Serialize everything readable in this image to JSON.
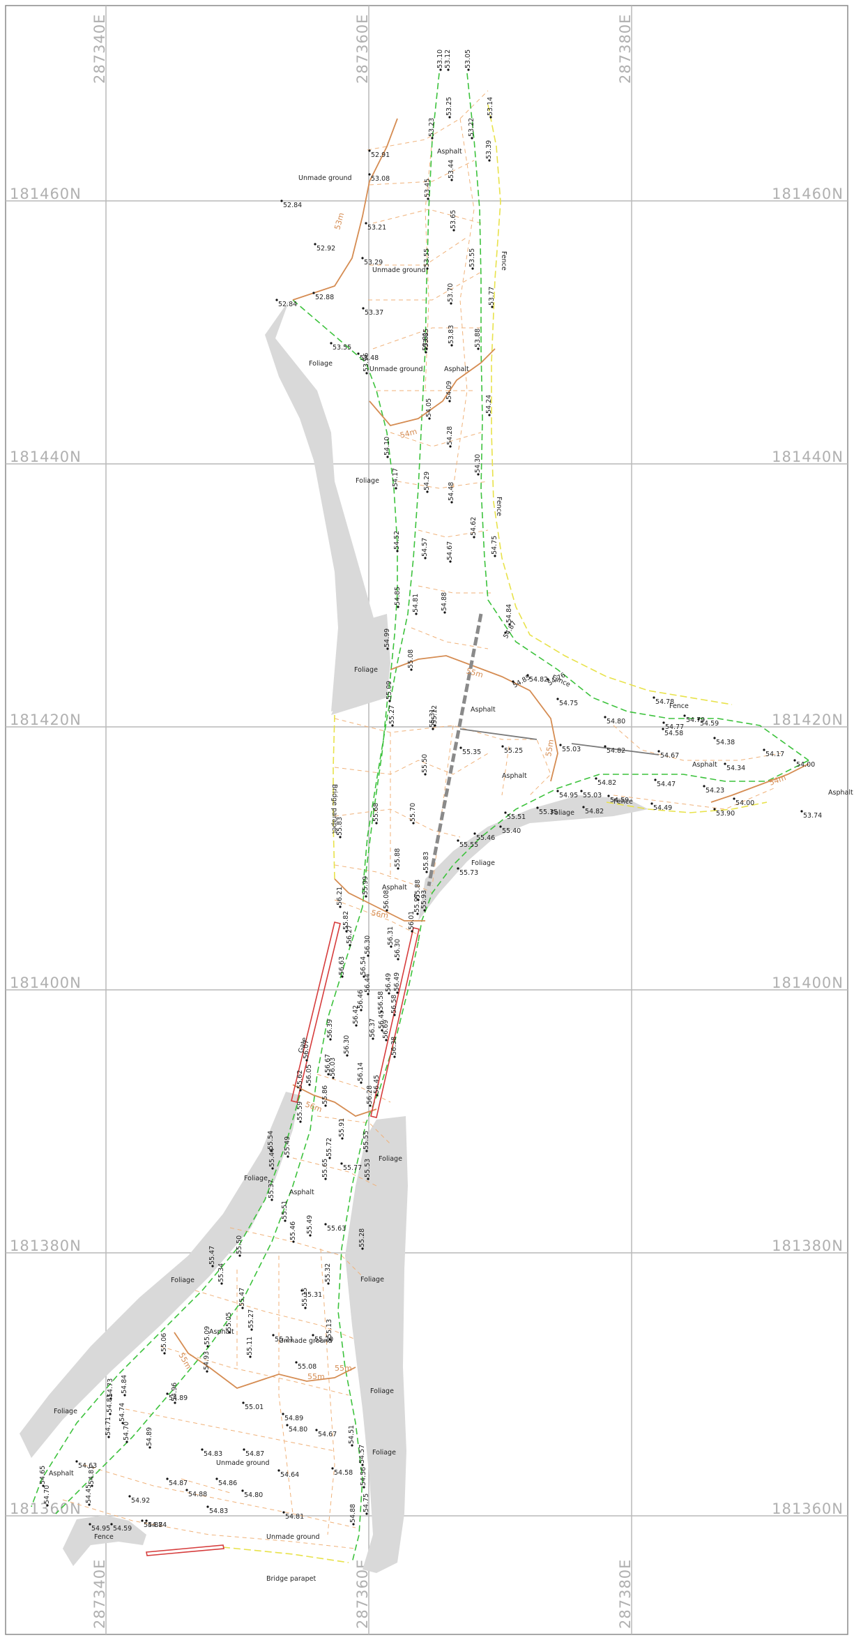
{
  "grid": {
    "eastings": [
      "287340E",
      "287360E",
      "287380E"
    ],
    "northings": [
      "181460N",
      "181440N",
      "181420N",
      "181400N",
      "181380N",
      "181360N"
    ]
  },
  "colors": {
    "foliage": "#d9d9d9",
    "road_edge": "#3cc23c",
    "fence": "#e8e24a",
    "contour": "#d58c52",
    "parapet": "#d63c3c",
    "grid": "#b9b9b9"
  },
  "areas": [
    {
      "text": "Unmade ground"
    },
    {
      "text": "Unmade ground"
    },
    {
      "text": "Unmade ground"
    },
    {
      "text": "Unmade ground"
    },
    {
      "text": "Unmade ground"
    },
    {
      "text": "Unmade ground"
    },
    {
      "text": "Asphalt"
    },
    {
      "text": "Asphalt"
    },
    {
      "text": "Asphalt"
    },
    {
      "text": "Asphalt"
    },
    {
      "text": "Asphalt"
    },
    {
      "text": "Asphalt"
    },
    {
      "text": "Asphalt"
    },
    {
      "text": "Asphalt"
    },
    {
      "text": "Asphalt"
    },
    {
      "text": "Asphalt"
    },
    {
      "text": "Foliage"
    },
    {
      "text": "Foliage"
    },
    {
      "text": "Foliage"
    },
    {
      "text": "Foliage"
    },
    {
      "text": "Foliage"
    },
    {
      "text": "Foliage"
    },
    {
      "text": "Foliage"
    },
    {
      "text": "Foliage"
    },
    {
      "text": "Foliage"
    },
    {
      "text": "Foliage"
    },
    {
      "text": "Foliage"
    },
    {
      "text": "Foliage"
    },
    {
      "text": "Fence"
    },
    {
      "text": "Fence"
    },
    {
      "text": "Fence"
    },
    {
      "text": "Fence"
    },
    {
      "text": "Fence"
    },
    {
      "text": "Fence"
    },
    {
      "text": "Bridge parapet"
    },
    {
      "text": "Bridge parapet"
    },
    {
      "text": "Gate"
    }
  ],
  "contours": [
    "53m",
    "54m",
    "54m",
    "55m",
    "55m",
    "56m",
    "56m",
    "55m",
    "55m",
    "55m"
  ],
  "levels": [
    "53.10",
    "53.12",
    "53.05",
    "53.25",
    "53.14",
    "53.23",
    "53.22",
    "52.91",
    "53.08",
    "53.39",
    "53.44",
    "52.84",
    "53.45",
    "53.21",
    "53.65",
    "52.92",
    "53.29",
    "53.55",
    "53.55",
    "52.88",
    "53.37",
    "53.70",
    "53.77",
    "52.84",
    "53.85",
    "53.55",
    "53.88",
    "53.48",
    "53.81",
    "53.83",
    "53.96",
    "54.09",
    "54.05",
    "54.24",
    "54.28",
    "54.10",
    "54.30",
    "54.29",
    "54.17",
    "54.48",
    "54.62",
    "54.52",
    "54.57",
    "54.67",
    "54.75",
    "54.85",
    "54.81",
    "54.88",
    "54.99",
    "55.08",
    "54.84",
    "54.87",
    "54.82",
    "54.85",
    "54.76",
    "54.75",
    "55.09",
    "54.78",
    "54.79",
    "54.80",
    "54.77",
    "54.59",
    "55.12",
    "55.27",
    "55.31",
    "55.35",
    "55.25",
    "55.03",
    "54.82",
    "54.58",
    "54.67",
    "54.38",
    "54.34",
    "54.17",
    "54.00",
    "55.50",
    "54.95",
    "55.03",
    "54.82",
    "54.47",
    "54.23",
    "53.90",
    "54.00",
    "53.74",
    "54.59",
    "54.49",
    "55.70",
    "55.51",
    "55.35",
    "54.82",
    "55.68",
    "55.83",
    "55.46",
    "55.40",
    "55.88",
    "55.55",
    "55.73",
    "55.83",
    "55.99",
    "55.88",
    "55.93",
    "56.21",
    "56.08",
    "55.97",
    "56.01",
    "55.82",
    "56.27",
    "56.31",
    "56.30",
    "56.30",
    "56.54",
    "56.63",
    "56.44",
    "56.49",
    "56.49",
    "56.46",
    "56.58",
    "56.58",
    "56.42",
    "56.45",
    "56.69",
    "56.38",
    "56.39",
    "56.37",
    "56.30",
    "56.67",
    "56.07",
    "56.14",
    "56.45",
    "56.05",
    "56.03",
    "56.28",
    "55.62",
    "55.86",
    "55.59",
    "55.91",
    "55.54",
    "55.49",
    "55.72",
    "55.55",
    "55.77",
    "55.44",
    "55.65",
    "55.53",
    "55.37",
    "55.51",
    "55.63",
    "55.49",
    "55.46",
    "55.28",
    "55.50",
    "55.31",
    "55.47",
    "55.34",
    "55.32",
    "55.47",
    "55.15",
    "55.27",
    "55.11",
    "55.21",
    "55.20",
    "55.05",
    "55.09",
    "55.13",
    "55.06",
    "55.08",
    "54.89",
    "55.01",
    "54.93",
    "54.89",
    "54.96",
    "54.81",
    "54.84",
    "54.73",
    "54.80",
    "54.67",
    "54.74",
    "54.71",
    "54.70",
    "54.89",
    "54.83",
    "54.63",
    "54.87",
    "54.87",
    "54.88",
    "54.86",
    "54.80",
    "54.64",
    "54.58",
    "54.51",
    "54.57",
    "54.81",
    "54.56",
    "54.65",
    "54.45",
    "54.92",
    "54.75",
    "54.70",
    "54.83",
    "54.81",
    "54.95",
    "54.59",
    "54.88",
    "54.88",
    "54.74"
  ]
}
